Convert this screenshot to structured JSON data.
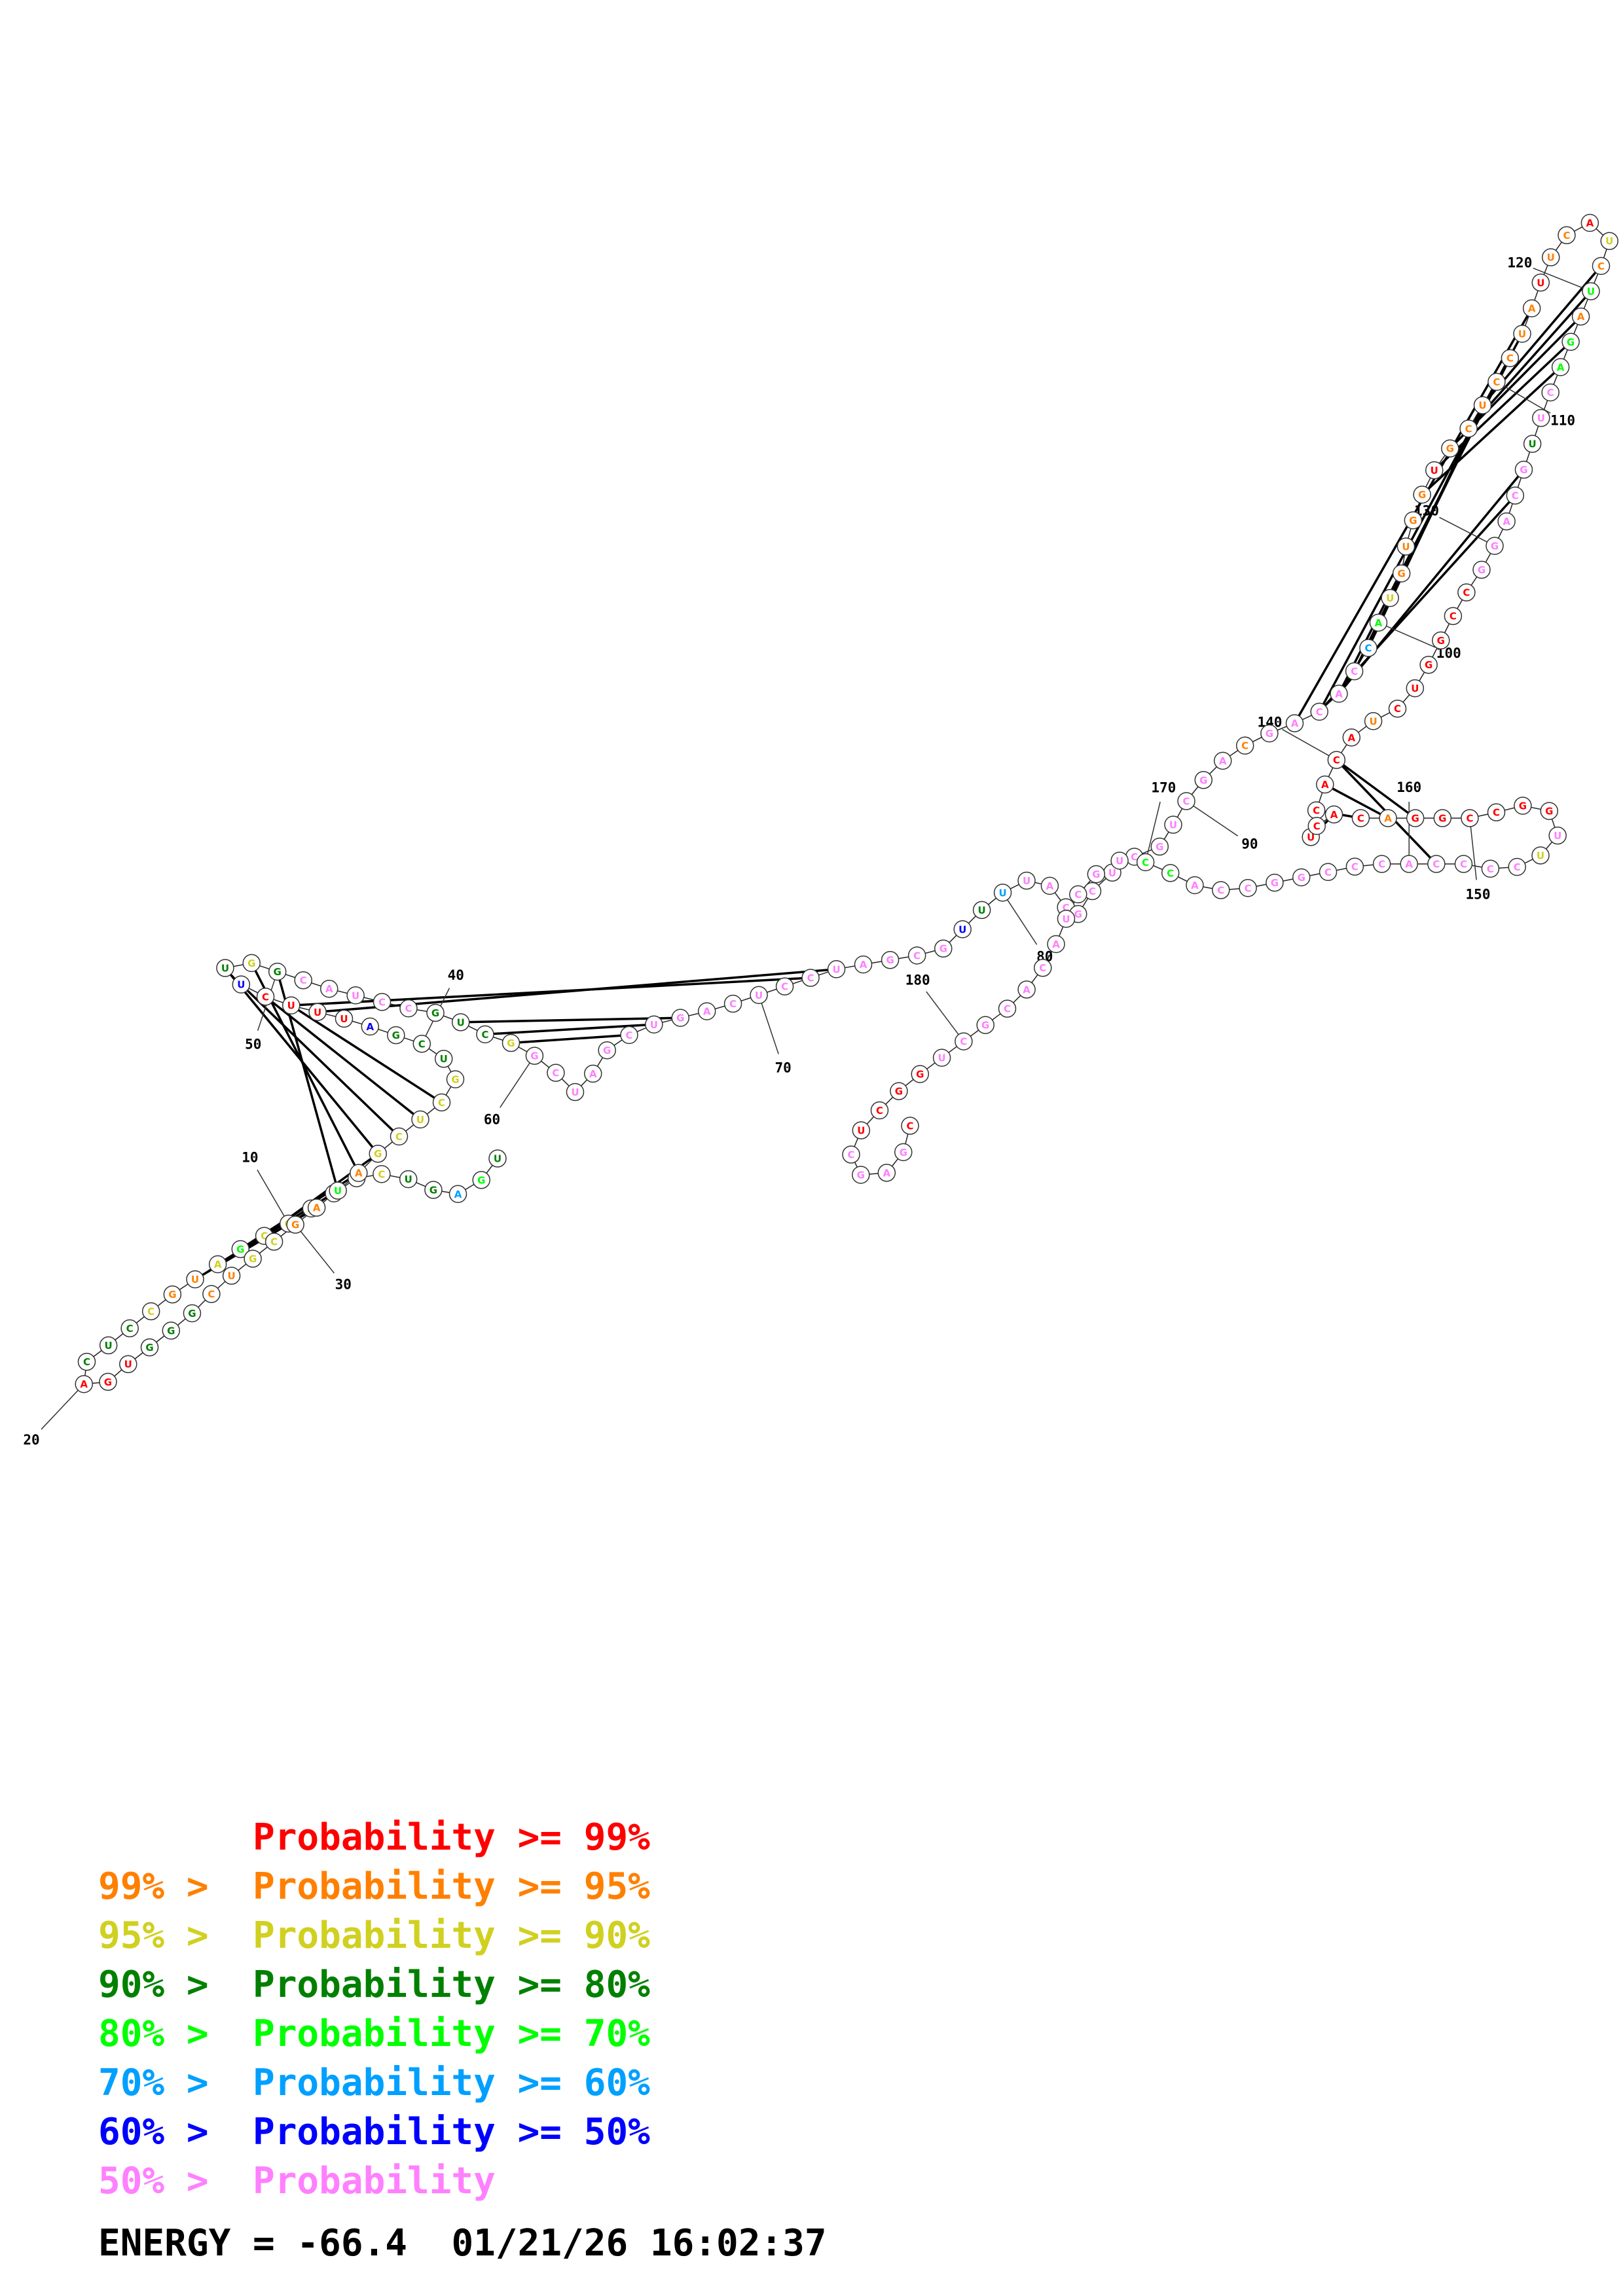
{
  "colors": {
    "p99": "#ff0000",
    "p95": "#ff8000",
    "p90": "#d0d020",
    "p80": "#008000",
    "p70": "#00ff00",
    "p60": "#00a0ff",
    "p50": "#0000ff",
    "low": "#ff80ff"
  },
  "legend": [
    {
      "band": "p99",
      "prefix": "",
      "label": "Probability >= 99%"
    },
    {
      "band": "p95",
      "prefix": "99% > ",
      "label": "Probability >= 95%"
    },
    {
      "band": "p90",
      "prefix": "95% > ",
      "label": "Probability >= 90%"
    },
    {
      "band": "p80",
      "prefix": "90% > ",
      "label": "Probability >= 80%"
    },
    {
      "band": "p70",
      "prefix": "80% > ",
      "label": "Probability >= 70%"
    },
    {
      "band": "p60",
      "prefix": "70% > ",
      "label": "Probability >= 60%"
    },
    {
      "band": "p50",
      "prefix": "60% > ",
      "label": "Probability >= 50%"
    },
    {
      "band": "low",
      "prefix": "50% > ",
      "label": "Probability"
    }
  ],
  "footer": {
    "energy": "ENERGY = -66.4",
    "timestamp": "01/21/26 16:02:37"
  },
  "position_labels": [
    "10",
    "20",
    "30",
    "40",
    "50",
    "60",
    "70",
    "80",
    "90",
    "100",
    "110",
    "120",
    "130",
    "140",
    "150",
    "160",
    "170",
    "180"
  ],
  "nucleotides": [
    {
      "b": "U",
      "p": "p80"
    },
    {
      "b": "G",
      "p": "p70"
    },
    {
      "b": "A",
      "p": "p60"
    },
    {
      "b": "G",
      "p": "p80"
    },
    {
      "b": "U",
      "p": "p80"
    },
    {
      "b": "C",
      "p": "p90"
    },
    {
      "b": "U",
      "p": "p90"
    },
    {
      "b": "C",
      "p": "p90"
    },
    {
      "b": "A",
      "p": "p90"
    },
    {
      "b": "G",
      "p": "p90"
    },
    {
      "b": "C",
      "p": "p90"
    },
    {
      "b": "G",
      "p": "p70"
    },
    {
      "b": "A",
      "p": "p90"
    },
    {
      "b": "U",
      "p": "p95"
    },
    {
      "b": "G",
      "p": "p95"
    },
    {
      "b": "C",
      "p": "p90"
    },
    {
      "b": "C",
      "p": "p80"
    },
    {
      "b": "U",
      "p": "p80"
    },
    {
      "b": "C",
      "p": "p80"
    },
    {
      "b": "A",
      "p": "p99"
    },
    {
      "b": "G",
      "p": "p99"
    },
    {
      "b": "U",
      "p": "p99"
    },
    {
      "b": "G",
      "p": "p80"
    },
    {
      "b": "G",
      "p": "p80"
    },
    {
      "b": "G",
      "p": "p80"
    },
    {
      "b": "C",
      "p": "p95"
    },
    {
      "b": "U",
      "p": "p95"
    },
    {
      "b": "G",
      "p": "p90"
    },
    {
      "b": "C",
      "p": "p90"
    },
    {
      "b": "G",
      "p": "p95"
    },
    {
      "b": "A",
      "p": "p95"
    },
    {
      "b": "U",
      "p": "p70"
    },
    {
      "b": "A",
      "p": "p95"
    },
    {
      "b": "G",
      "p": "p90"
    },
    {
      "b": "C",
      "p": "p90"
    },
    {
      "b": "U",
      "p": "p90"
    },
    {
      "b": "C",
      "p": "p90"
    },
    {
      "b": "G",
      "p": "p90"
    },
    {
      "b": "U",
      "p": "p80"
    },
    {
      "b": "C",
      "p": "p80"
    },
    {
      "b": "G",
      "p": "p80"
    },
    {
      "b": "A",
      "p": "p50"
    },
    {
      "b": "U",
      "p": "p99"
    },
    {
      "b": "U",
      "p": "p99"
    },
    {
      "b": "U",
      "p": "p99"
    },
    {
      "b": "C",
      "p": "p99"
    },
    {
      "b": "U",
      "p": "p50"
    },
    {
      "b": "U",
      "p": "p80"
    },
    {
      "b": "G",
      "p": "p90"
    },
    {
      "b": "G",
      "p": "p80"
    },
    {
      "b": "C",
      "p": "low"
    },
    {
      "b": "A",
      "p": "low"
    },
    {
      "b": "U",
      "p": "low"
    },
    {
      "b": "C",
      "p": "low"
    },
    {
      "b": "C",
      "p": "low"
    },
    {
      "b": "G",
      "p": "p80"
    },
    {
      "b": "U",
      "p": "p80"
    },
    {
      "b": "C",
      "p": "p80"
    },
    {
      "b": "G",
      "p": "p90"
    },
    {
      "b": "G",
      "p": "low"
    },
    {
      "b": "C",
      "p": "low"
    },
    {
      "b": "U",
      "p": "low"
    },
    {
      "b": "A",
      "p": "low"
    },
    {
      "b": "G",
      "p": "low"
    },
    {
      "b": "C",
      "p": "low"
    },
    {
      "b": "U",
      "p": "low"
    },
    {
      "b": "G",
      "p": "low"
    },
    {
      "b": "A",
      "p": "low"
    },
    {
      "b": "C",
      "p": "low"
    },
    {
      "b": "U",
      "p": "low"
    },
    {
      "b": "C",
      "p": "low"
    },
    {
      "b": "C",
      "p": "low"
    },
    {
      "b": "U",
      "p": "low"
    },
    {
      "b": "A",
      "p": "low"
    },
    {
      "b": "G",
      "p": "low"
    },
    {
      "b": "C",
      "p": "low"
    },
    {
      "b": "G",
      "p": "low"
    },
    {
      "b": "U",
      "p": "p50"
    },
    {
      "b": "U",
      "p": "p80"
    },
    {
      "b": "U",
      "p": "p60"
    },
    {
      "b": "U",
      "p": "low"
    },
    {
      "b": "A",
      "p": "low"
    },
    {
      "b": "C",
      "p": "low"
    },
    {
      "b": "G",
      "p": "low"
    },
    {
      "b": "C",
      "p": "low"
    },
    {
      "b": "U",
      "p": "low"
    },
    {
      "b": "C",
      "p": "low"
    },
    {
      "b": "G",
      "p": "low"
    },
    {
      "b": "U",
      "p": "low"
    },
    {
      "b": "C",
      "p": "low"
    },
    {
      "b": "G",
      "p": "low"
    },
    {
      "b": "A",
      "p": "low"
    },
    {
      "b": "C",
      "p": "p95"
    },
    {
      "b": "G",
      "p": "low"
    },
    {
      "b": "A",
      "p": "low"
    },
    {
      "b": "C",
      "p": "low"
    },
    {
      "b": "A",
      "p": "low"
    },
    {
      "b": "C",
      "p": "low"
    },
    {
      "b": "C",
      "p": "p60"
    },
    {
      "b": "A",
      "p": "p70"
    },
    {
      "b": "U",
      "p": "p90"
    },
    {
      "b": "G",
      "p": "p95"
    },
    {
      "b": "U",
      "p": "p95"
    },
    {
      "b": "G",
      "p": "p95"
    },
    {
      "b": "G",
      "p": "p95"
    },
    {
      "b": "U",
      "p": "p99"
    },
    {
      "b": "G",
      "p": "p95"
    },
    {
      "b": "C",
      "p": "p95"
    },
    {
      "b": "U",
      "p": "p95"
    },
    {
      "b": "C",
      "p": "p95"
    },
    {
      "b": "C",
      "p": "p95"
    },
    {
      "b": "U",
      "p": "p95"
    },
    {
      "b": "A",
      "p": "p95"
    },
    {
      "b": "U",
      "p": "p99"
    },
    {
      "b": "U",
      "p": "p95"
    },
    {
      "b": "C",
      "p": "p95"
    },
    {
      "b": "A",
      "p": "p99"
    },
    {
      "b": "U",
      "p": "p90"
    },
    {
      "b": "C",
      "p": "p95"
    },
    {
      "b": "U",
      "p": "p70"
    },
    {
      "b": "A",
      "p": "p95"
    },
    {
      "b": "G",
      "p": "p70"
    },
    {
      "b": "A",
      "p": "p70"
    },
    {
      "b": "C",
      "p": "low"
    },
    {
      "b": "U",
      "p": "low"
    },
    {
      "b": "U",
      "p": "p80"
    },
    {
      "b": "G",
      "p": "low"
    },
    {
      "b": "C",
      "p": "low"
    },
    {
      "b": "A",
      "p": "low"
    },
    {
      "b": "G",
      "p": "low"
    },
    {
      "b": "G",
      "p": "low"
    },
    {
      "b": "C",
      "p": "p99"
    },
    {
      "b": "C",
      "p": "p99"
    },
    {
      "b": "G",
      "p": "p99"
    },
    {
      "b": "G",
      "p": "p99"
    },
    {
      "b": "U",
      "p": "p99"
    },
    {
      "b": "C",
      "p": "p99"
    },
    {
      "b": "U",
      "p": "p95"
    },
    {
      "b": "A",
      "p": "p99"
    },
    {
      "b": "C",
      "p": "p99"
    },
    {
      "b": "A",
      "p": "p99"
    },
    {
      "b": "C",
      "p": "p99"
    },
    {
      "b": "U",
      "p": "p99"
    },
    {
      "b": "C",
      "p": "p99"
    },
    {
      "b": "A",
      "p": "p99"
    },
    {
      "b": "C",
      "p": "p99"
    },
    {
      "b": "A",
      "p": "p95"
    },
    {
      "b": "G",
      "p": "p99"
    },
    {
      "b": "G",
      "p": "p99"
    },
    {
      "b": "C",
      "p": "p99"
    },
    {
      "b": "C",
      "p": "p99"
    },
    {
      "b": "G",
      "p": "p99"
    },
    {
      "b": "G",
      "p": "p99"
    },
    {
      "b": "U",
      "p": "low"
    },
    {
      "b": "U",
      "p": "p90"
    },
    {
      "b": "C",
      "p": "low"
    },
    {
      "b": "C",
      "p": "low"
    },
    {
      "b": "C",
      "p": "low"
    },
    {
      "b": "C",
      "p": "low"
    },
    {
      "b": "A",
      "p": "low"
    },
    {
      "b": "C",
      "p": "low"
    },
    {
      "b": "C",
      "p": "low"
    },
    {
      "b": "C",
      "p": "low"
    },
    {
      "b": "G",
      "p": "low"
    },
    {
      "b": "G",
      "p": "low"
    },
    {
      "b": "C",
      "p": "low"
    },
    {
      "b": "C",
      "p": "low"
    },
    {
      "b": "A",
      "p": "low"
    },
    {
      "b": "C",
      "p": "p70"
    },
    {
      "b": "C",
      "p": "p70"
    },
    {
      "b": "U",
      "p": "low"
    },
    {
      "b": "G",
      "p": "low"
    },
    {
      "b": "C",
      "p": "low"
    },
    {
      "b": "U",
      "p": "low"
    },
    {
      "b": "A",
      "p": "low"
    },
    {
      "b": "C",
      "p": "low"
    },
    {
      "b": "A",
      "p": "low"
    },
    {
      "b": "C",
      "p": "low"
    },
    {
      "b": "G",
      "p": "low"
    },
    {
      "b": "C",
      "p": "low"
    },
    {
      "b": "U",
      "p": "low"
    },
    {
      "b": "G",
      "p": "p99"
    },
    {
      "b": "G",
      "p": "p99"
    },
    {
      "b": "C",
      "p": "p99"
    },
    {
      "b": "U",
      "p": "p99"
    },
    {
      "b": "C",
      "p": "low"
    },
    {
      "b": "G",
      "p": "low"
    },
    {
      "b": "A",
      "p": "low"
    },
    {
      "b": "G",
      "p": "low"
    },
    {
      "b": "C",
      "p": "p99"
    }
  ]
}
